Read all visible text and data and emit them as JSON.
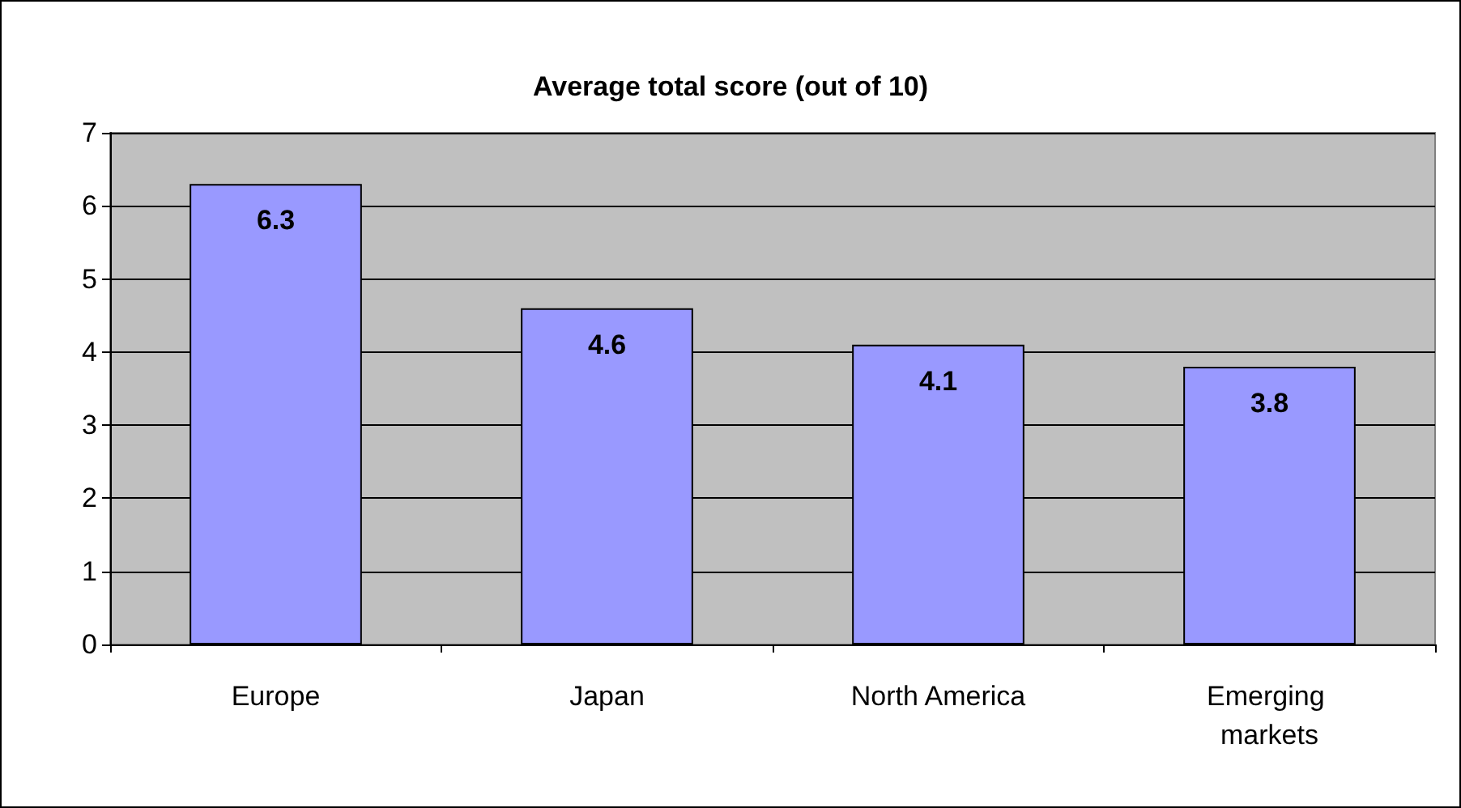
{
  "chart_data": {
    "type": "bar",
    "title": "Average total score (out of 10)",
    "categories": [
      "Europe",
      "Japan",
      "North America",
      "Emerging markets"
    ],
    "values": [
      6.3,
      4.6,
      4.1,
      3.8
    ],
    "color": "#9999ff",
    "ylim": [
      0,
      7
    ],
    "yticks": [
      0,
      1,
      2,
      3,
      4,
      5,
      6,
      7
    ],
    "grid": true,
    "data_labels": true
  }
}
